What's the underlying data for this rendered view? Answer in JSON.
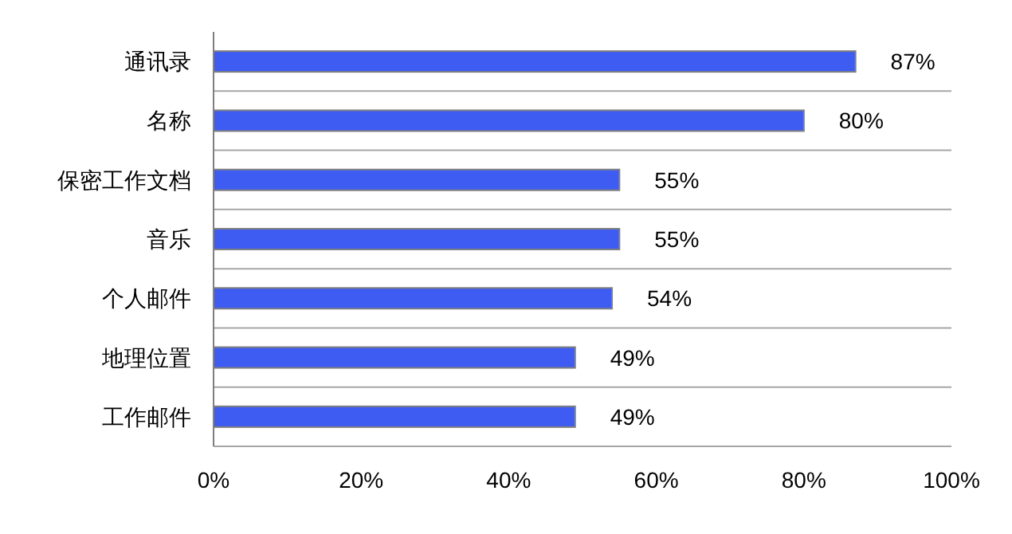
{
  "chart_data": {
    "type": "bar",
    "orientation": "horizontal",
    "categories": [
      "通讯录",
      "名称",
      "保密工作文档",
      "音乐",
      "个人邮件",
      "地理位置",
      "工作邮件"
    ],
    "values": [
      87,
      80,
      55,
      55,
      54,
      49,
      49
    ],
    "value_labels": [
      "87%",
      "80%",
      "55%",
      "55%",
      "54%",
      "49%",
      "49%"
    ],
    "color": "#3e5cf2",
    "xlim": [
      0,
      100
    ],
    "xticks": [
      {
        "value": 0,
        "label": "0%"
      },
      {
        "value": 20,
        "label": "20%"
      },
      {
        "value": 40,
        "label": "40%"
      },
      {
        "value": 60,
        "label": "60%"
      },
      {
        "value": 80,
        "label": "80%"
      },
      {
        "value": 100,
        "label": "100%"
      }
    ],
    "grid": "y"
  }
}
